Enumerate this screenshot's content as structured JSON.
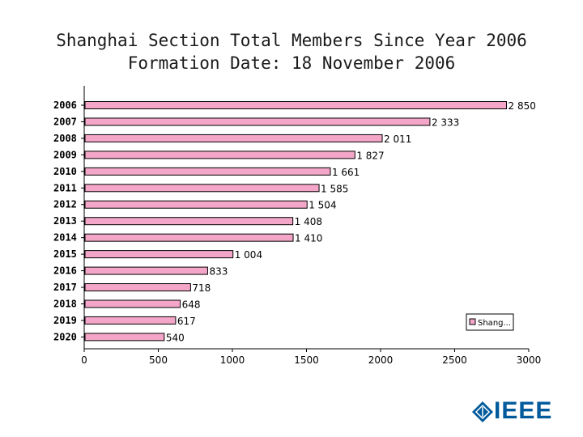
{
  "title": {
    "line1": "Shanghai Section Total Members Since Year 2006",
    "line2": "Formation Date: 18 November 2006"
  },
  "chart_data": {
    "type": "bar",
    "orientation": "horizontal",
    "categories": [
      "2006",
      "2007",
      "2008",
      "2009",
      "2010",
      "2011",
      "2012",
      "2013",
      "2014",
      "2015",
      "2016",
      "2017",
      "2018",
      "2019",
      "2020"
    ],
    "values": [
      2850,
      2333,
      2011,
      1827,
      1661,
      1585,
      1504,
      1408,
      1410,
      1004,
      833,
      718,
      648,
      617,
      540
    ],
    "value_labels": [
      "2 850",
      "2 333",
      "2 011",
      "1 827",
      "1 661",
      "1 585",
      "1 504",
      "1 408",
      "1 410",
      "1 004",
      "833",
      "718",
      "648",
      "617",
      "540"
    ],
    "xlim": [
      0,
      3000
    ],
    "xticks": [
      0,
      500,
      1000,
      1500,
      2000,
      2500,
      3000
    ],
    "bar_color": "#f4a6c8",
    "grid": false,
    "legend": {
      "placement": "bottom-right",
      "label": "Shang..."
    }
  },
  "logo": {
    "text": "IEEE",
    "color": "#005a9c"
  }
}
